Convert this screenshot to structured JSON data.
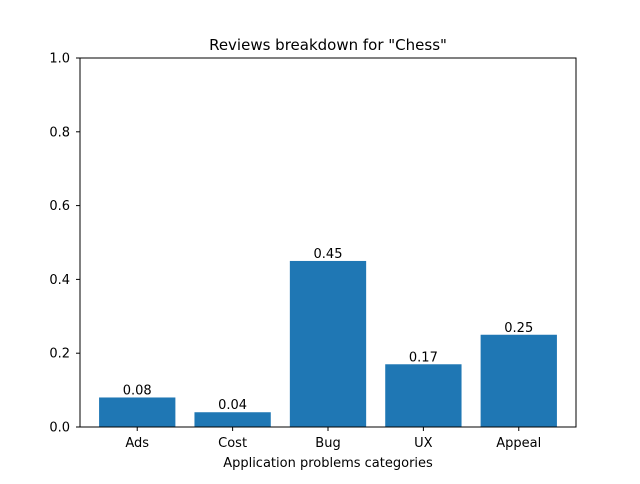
{
  "chart_data": {
    "type": "bar",
    "title": "Reviews breakdown for \"Chess\"",
    "xlabel": "Application problems categories",
    "ylabel": "",
    "categories": [
      "Ads",
      "Cost",
      "Bug",
      "UX",
      "Appeal"
    ],
    "values": [
      0.08,
      0.04,
      0.45,
      0.17,
      0.25
    ],
    "data_labels": [
      "0.08",
      "0.04",
      "0.45",
      "0.17",
      "0.25"
    ],
    "ylim": [
      0,
      1.0
    ],
    "yticks": [
      0.0,
      0.2,
      0.4,
      0.6,
      0.8,
      1.0
    ],
    "ytick_labels": [
      "0.0",
      "0.2",
      "0.4",
      "0.6",
      "0.8",
      "1.0"
    ],
    "grid": false,
    "bar_color": "#1f77b4"
  }
}
